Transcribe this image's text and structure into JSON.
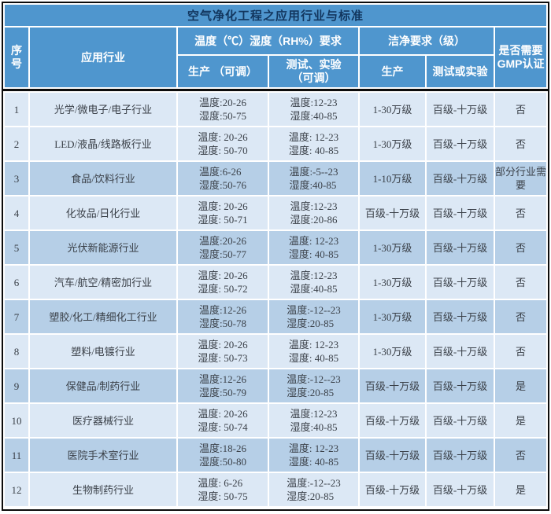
{
  "colors": {
    "header_blue": "#4f96ce",
    "title_text": "#12365e",
    "row_light": "#dce8f5",
    "row_dark": "#b6cfe7",
    "body_text": "#3b4149",
    "grid_white": "#ffffff",
    "frame_black": "#0c0c0c"
  },
  "chart_data": {
    "type": "table",
    "title": "空气净化工程之应用行业与标准",
    "columns": {
      "no_l1": "序",
      "no_l2": "号",
      "industry": "应用行业",
      "temp_group": "温度（℃）湿度（RH%）要求",
      "temp_prod": "生产 （可调）",
      "temp_test_l1": "测试、实验",
      "temp_test_l2": "（可调）",
      "clean_group": "洁净要求（级）",
      "clean_prod": "生产",
      "clean_test": "测试或实验",
      "gmp_l1": "是否需要",
      "gmp_l2": "GMP认证"
    },
    "rows": [
      {
        "no": "1",
        "industry": "光学/微电子/电子行业",
        "pt": "温度:20-26",
        "ph": "湿度:50-75",
        "tt": "温度:12-23",
        "th": "湿度:40-85",
        "cp": "1-30万级",
        "ct": "百级-十万级",
        "gmp": "否"
      },
      {
        "no": "2",
        "industry": "LED/液晶/线路板行业",
        "pt": "温度: 20-26",
        "ph": "湿度: 50-70",
        "tt": "温度: 12-23",
        "th": "湿度: 40-85",
        "cp": "1-30万级",
        "ct": "百级-十万级",
        "gmp": "否"
      },
      {
        "no": "3",
        "industry": "食品/饮料行业",
        "pt": "温度:6-26",
        "ph": "湿度:50-76",
        "tt": "温度:-5--23",
        "th": "湿度:40-85",
        "cp": "1-10万级",
        "ct": "百级-十万级",
        "gmp": "部分行业需要"
      },
      {
        "no": "4",
        "industry": "化妆品/日化行业",
        "pt": "温度: 20-26",
        "ph": "湿度: 50-71",
        "tt": "温度:12-23",
        "th": "湿度:20-86",
        "cp": "百级-十万级",
        "ct": "百级-十万级",
        "gmp": "否"
      },
      {
        "no": "5",
        "industry": "光伏新能源行业",
        "pt": "温度:20-26",
        "ph": "湿度:50-77",
        "tt": "温度: 12-23",
        "th": "湿度: 40-85",
        "cp": "1-30万级",
        "ct": "百级-十万级",
        "gmp": "否"
      },
      {
        "no": "6",
        "industry": "汽车/航空/精密加行业",
        "pt": "温度: 20-26",
        "ph": "湿度: 50-72",
        "tt": "温度:12-23",
        "th": "湿度:40-85",
        "cp": "1-30万级",
        "ct": "百级-十万级",
        "gmp": "否"
      },
      {
        "no": "7",
        "industry": "塑胶/化工/精细化工行业",
        "pt": "温度:12-26",
        "ph": "湿度:50-78",
        "tt": "温度:-12--23",
        "th": "湿度:20-85",
        "cp": "1-30万级",
        "ct": "百级-十万级",
        "gmp": "否"
      },
      {
        "no": "8",
        "industry": "塑料/电镀行业",
        "pt": "温度: 20-26",
        "ph": "湿度: 50-73",
        "tt": "温度: 12-23",
        "th": "湿度: 40-85",
        "cp": "1-30万级",
        "ct": "百级-十万级",
        "gmp": "否"
      },
      {
        "no": "9",
        "industry": "保健品/制药行业",
        "pt": "温度:12-26",
        "ph": "湿度:50-79",
        "tt": "温度:-12--23",
        "th": "湿度:20-85",
        "cp": "百级-十万级",
        "ct": "百级-十万级",
        "gmp": "是"
      },
      {
        "no": "10",
        "industry": "医疗器械行业",
        "pt": "温度: 20-26",
        "ph": "湿度: 50-74",
        "tt": "温度:12-23",
        "th": "湿度:40-85",
        "cp": "百级-十万级",
        "ct": "百级-十万级",
        "gmp": "是"
      },
      {
        "no": "11",
        "industry": "医院手术室行业",
        "pt": "温度:18-26",
        "ph": "湿度:50-80",
        "tt": "温度: 12-23",
        "th": "湿度: 40-85",
        "cp": "百级-十万级",
        "ct": "百级-十万级",
        "gmp": "否"
      },
      {
        "no": "12",
        "industry": "生物制药行业",
        "pt": "温度: 6-26",
        "ph": "湿度: 50-75",
        "tt": "温度:-12--23",
        "th": "湿度:20-85",
        "cp": "百级-十万级",
        "ct": "百级-十万级",
        "gmp": "是"
      }
    ]
  }
}
